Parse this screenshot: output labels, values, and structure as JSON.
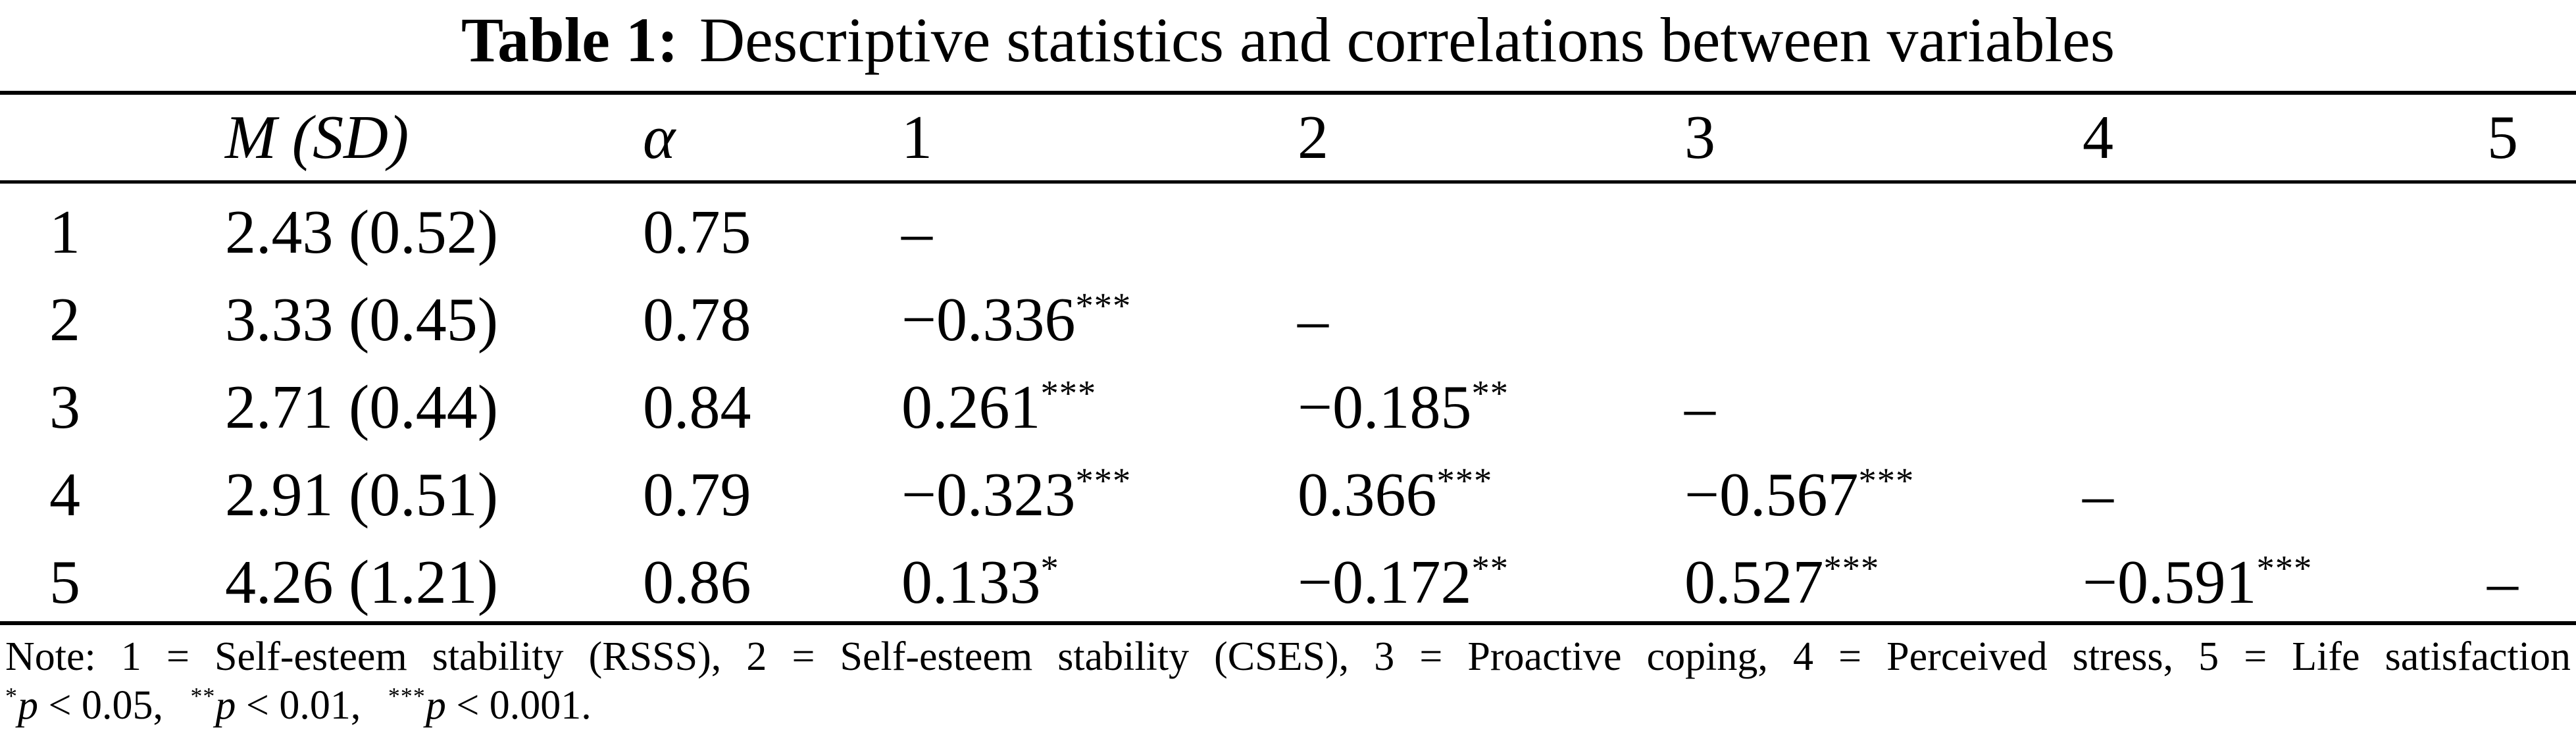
{
  "colors": {
    "background": "#ffffff",
    "text": "#000000",
    "rules": "#000000"
  },
  "title": {
    "label": "Table 1:",
    "text": "Descriptive statistics and correlations between variables"
  },
  "table": {
    "header": {
      "row_label": "",
      "msd": "M (SD)",
      "alpha": "α",
      "cols": [
        "1",
        "2",
        "3",
        "4",
        "5"
      ]
    },
    "rows": [
      {
        "id": "1",
        "msd": "2.43 (0.52)",
        "alpha": "0.75",
        "c": [
          {
            "v": "–",
            "s": ""
          },
          {
            "v": "",
            "s": ""
          },
          {
            "v": "",
            "s": ""
          },
          {
            "v": "",
            "s": ""
          },
          {
            "v": "",
            "s": ""
          }
        ]
      },
      {
        "id": "2",
        "msd": "3.33 (0.45)",
        "alpha": "0.78",
        "c": [
          {
            "v": "−0.336",
            "s": "***"
          },
          {
            "v": "–",
            "s": ""
          },
          {
            "v": "",
            "s": ""
          },
          {
            "v": "",
            "s": ""
          },
          {
            "v": "",
            "s": ""
          }
        ]
      },
      {
        "id": "3",
        "msd": "2.71 (0.44)",
        "alpha": "0.84",
        "c": [
          {
            "v": "0.261",
            "s": "***"
          },
          {
            "v": "−0.185",
            "s": "**"
          },
          {
            "v": "–",
            "s": ""
          },
          {
            "v": "",
            "s": ""
          },
          {
            "v": "",
            "s": ""
          }
        ]
      },
      {
        "id": "4",
        "msd": "2.91 (0.51)",
        "alpha": "0.79",
        "c": [
          {
            "v": "−0.323",
            "s": "***"
          },
          {
            "v": "0.366",
            "s": "***"
          },
          {
            "v": "−0.567",
            "s": "***"
          },
          {
            "v": "–",
            "s": ""
          },
          {
            "v": "",
            "s": ""
          }
        ]
      },
      {
        "id": "5",
        "msd": "4.26 (1.21)",
        "alpha": "0.86",
        "c": [
          {
            "v": "0.133",
            "s": "*"
          },
          {
            "v": "−0.172",
            "s": "**"
          },
          {
            "v": "0.527",
            "s": "***"
          },
          {
            "v": "−0.591",
            "s": "***"
          },
          {
            "v": "–",
            "s": ""
          }
        ]
      }
    ]
  },
  "note": {
    "line1": "Note: 1 = Self-esteem stability (RSSS), 2 = Self-esteem stability (CSES), 3 = Proactive coping, 4 = Perceived stress, 5 = Life satisfaction",
    "sig": [
      {
        "stars": "*",
        "p": "p",
        "cond": " < 0.05,"
      },
      {
        "stars": "**",
        "p": "p",
        "cond": " < 0.01,"
      },
      {
        "stars": "***",
        "p": "p",
        "cond": " < 0.001."
      }
    ]
  }
}
